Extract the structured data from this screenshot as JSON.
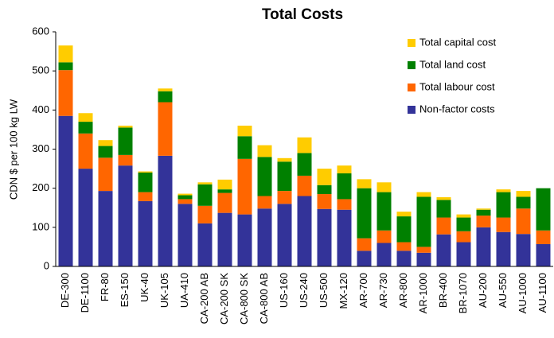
{
  "chart_data": {
    "type": "stacked_bar",
    "title": "Total Costs",
    "y_label": "CDN $ per 100 kg LW",
    "categories": [
      "DE-300",
      "DE-1100",
      "FR-80",
      "ES-150",
      "UK-40",
      "UK-105",
      "UA-410",
      "CA-200 AB",
      "CA-200 SK",
      "CA-800 SK",
      "CA-800 AB",
      "US-160",
      "US-240",
      "US-500",
      "MX-120",
      "AR-700",
      "AR-730",
      "AR-800",
      "AR-1000",
      "BR-400",
      "BR-1070",
      "AU-200",
      "AU-550",
      "AU-1000",
      "AU-1100"
    ],
    "series": [
      {
        "name": "Non-factor costs",
        "color": "#333399",
        "values": [
          385,
          250,
          193,
          258,
          167,
          283,
          160,
          110,
          137,
          133,
          148,
          160,
          180,
          147,
          145,
          40,
          60,
          40,
          35,
          82,
          62,
          100,
          88,
          83,
          57
        ]
      },
      {
        "name": "Total labour cost",
        "color": "#ff6600",
        "values": [
          117,
          90,
          85,
          27,
          23,
          137,
          12,
          45,
          51,
          142,
          32,
          33,
          52,
          38,
          27,
          32,
          32,
          22,
          15,
          43,
          28,
          30,
          37,
          65,
          35
        ]
      },
      {
        "name": "Total land cost",
        "color": "#008000",
        "values": [
          20,
          30,
          30,
          70,
          50,
          28,
          10,
          55,
          9,
          58,
          100,
          75,
          58,
          23,
          66,
          128,
          98,
          66,
          128,
          45,
          35,
          15,
          65,
          30,
          108
        ]
      },
      {
        "name": "Total capital cost",
        "color": "#ffcc00",
        "values": [
          43,
          22,
          15,
          5,
          3,
          7,
          4,
          5,
          25,
          27,
          30,
          9,
          40,
          42,
          20,
          23,
          25,
          12,
          12,
          7,
          8,
          3,
          7,
          15,
          0
        ]
      }
    ],
    "ylim": [
      0,
      600
    ],
    "yticks": [
      0,
      100,
      200,
      300,
      400,
      500,
      600
    ]
  }
}
